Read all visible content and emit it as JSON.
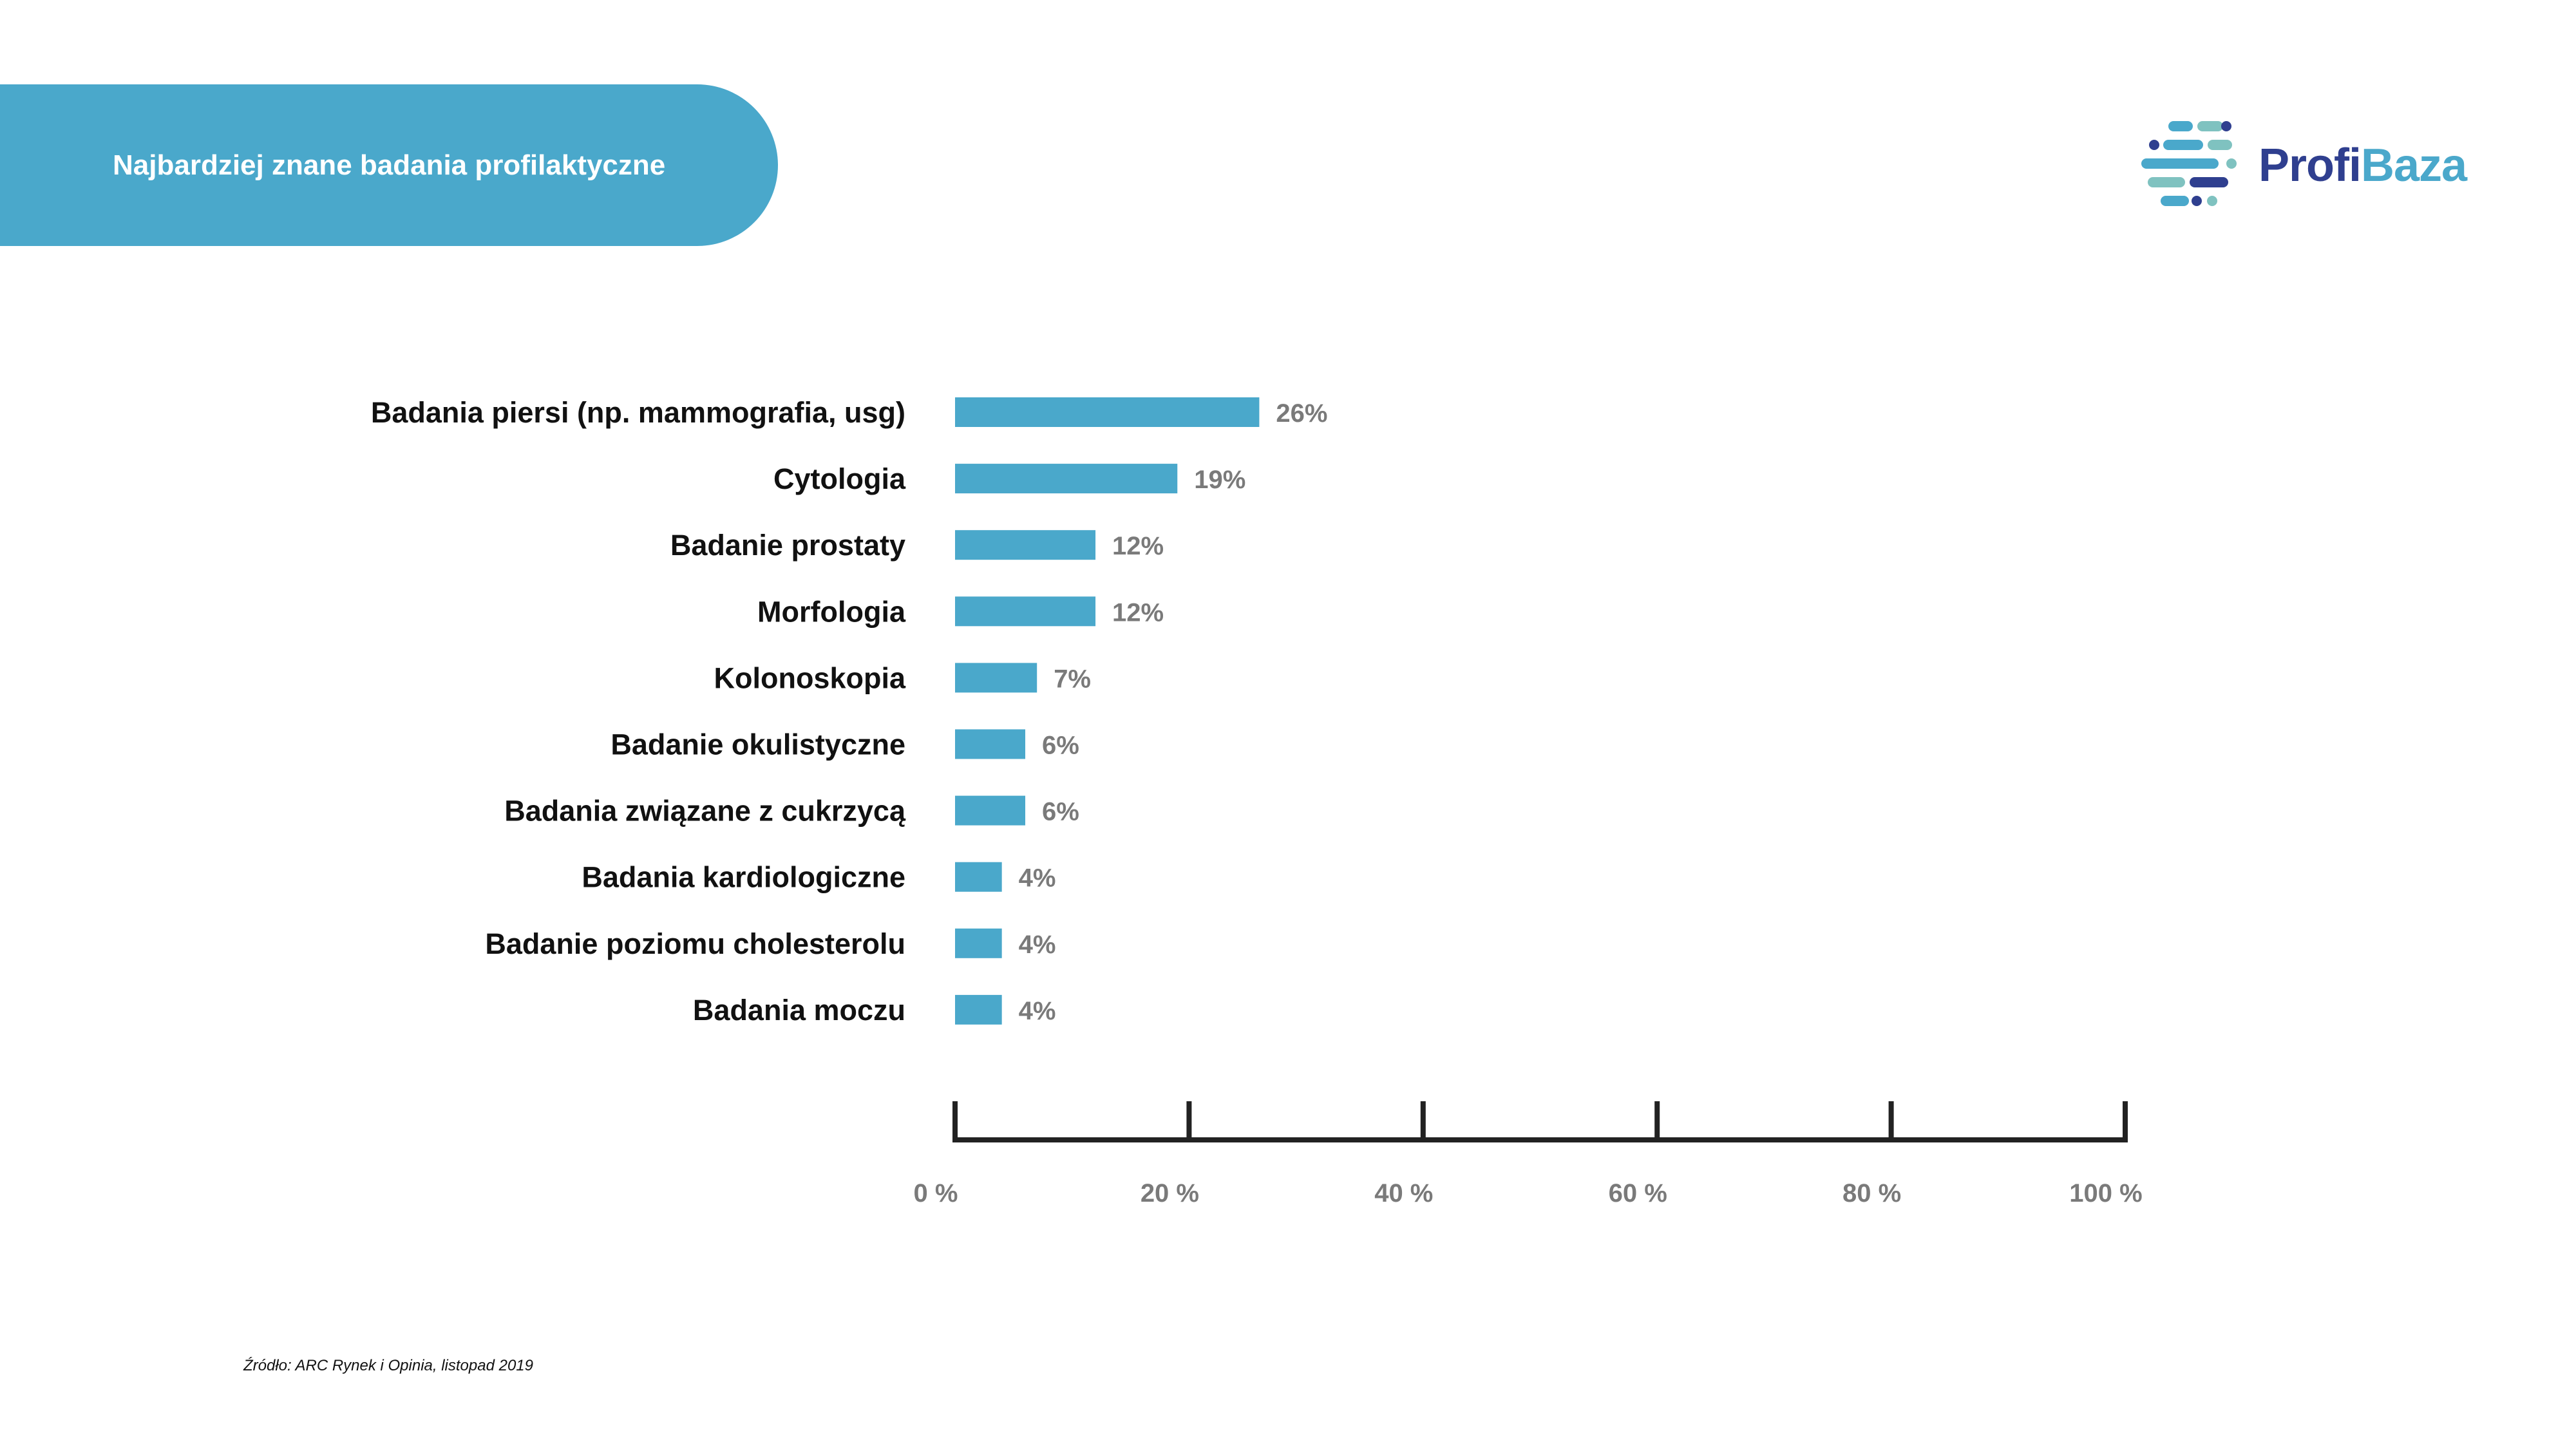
{
  "header": {
    "title": "Najbardziej znane badania profilaktyczne"
  },
  "logo": {
    "part1": "Profi",
    "part2": "Baza",
    "colors": {
      "dark": "#2f3f8f",
      "light": "#4aa8cb",
      "teal": "#7fc2c0"
    }
  },
  "chart_data": {
    "type": "bar",
    "orientation": "horizontal",
    "categories": [
      "Badania piersi (np. mammografia, usg)",
      "Cytologia",
      "Badanie prostaty",
      "Morfologia",
      "Kolonoskopia",
      "Badanie okulistyczne",
      "Badania związane z cukrzycą",
      "Badania kardiologiczne",
      "Badanie poziomu cholesterolu",
      "Badania moczu"
    ],
    "values": [
      26,
      19,
      12,
      12,
      7,
      6,
      6,
      4,
      4,
      4
    ],
    "value_labels": [
      "26%",
      "19%",
      "12%",
      "12%",
      "7%",
      "6%",
      "6%",
      "4%",
      "4%",
      "4%"
    ],
    "xlim": [
      0,
      100
    ],
    "x_ticks": [
      0,
      20,
      40,
      60,
      80,
      100
    ],
    "x_tick_labels": [
      "0 %",
      "20 %",
      "40 %",
      "60 %",
      "80 %",
      "100 %"
    ],
    "bar_color": "#4aa8cb",
    "grid": false,
    "legend": "none"
  },
  "footer": {
    "source": "Źródło: ARC Rynek i Opinia, listopad 2019"
  }
}
